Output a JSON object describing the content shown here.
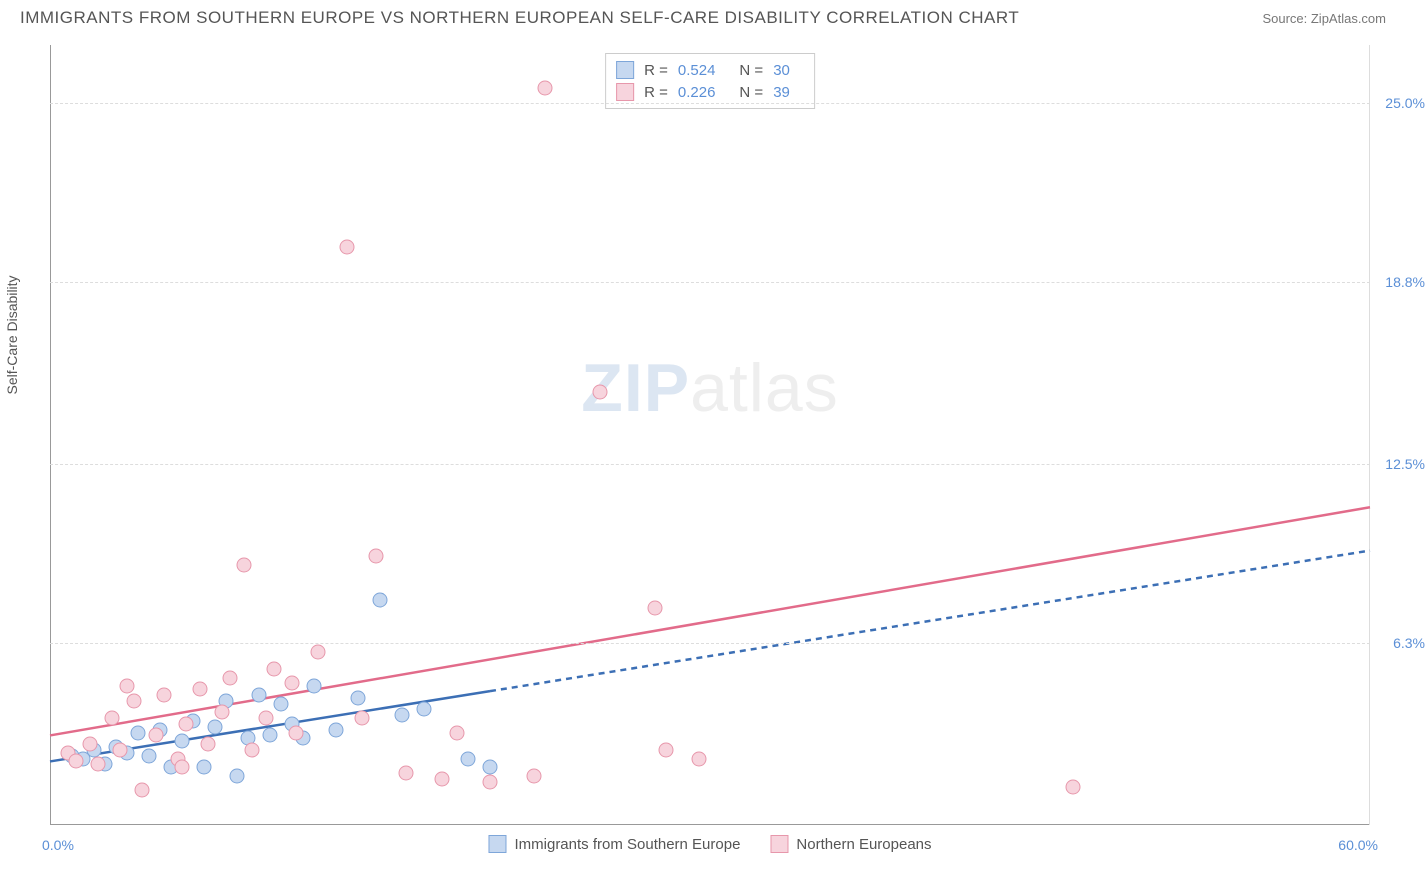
{
  "header": {
    "title": "IMMIGRANTS FROM SOUTHERN EUROPE VS NORTHERN EUROPEAN SELF-CARE DISABILITY CORRELATION CHART",
    "source_label": "Source: ",
    "source_value": "ZipAtlas.com"
  },
  "y_axis_label": "Self-Care Disability",
  "watermark": {
    "zip": "ZIP",
    "atlas": "atlas"
  },
  "chart": {
    "type": "scatter",
    "xlim": [
      0,
      60
    ],
    "ylim": [
      0,
      27
    ],
    "x_ticks": [
      {
        "value": 0,
        "label": "0.0%"
      },
      {
        "value": 60,
        "label": "60.0%"
      }
    ],
    "y_ticks": [
      {
        "value": 6.3,
        "label": "6.3%"
      },
      {
        "value": 12.5,
        "label": "12.5%"
      },
      {
        "value": 18.8,
        "label": "18.8%"
      },
      {
        "value": 25.0,
        "label": "25.0%"
      }
    ],
    "grid_color": "#dddddd",
    "axis_color": "#999999",
    "background_color": "#ffffff",
    "series": [
      {
        "name": "Immigrants from Southern Europe",
        "marker_fill": "#c6d8f0",
        "marker_stroke": "#7ea6d9",
        "marker_size": 15,
        "line_color": "#3c6fb5",
        "line_width": 2.5,
        "line_dash_extend": "6,5",
        "R": "0.524",
        "N": "30",
        "trend": {
          "x1": 0,
          "y1": 2.2,
          "x2": 60,
          "y2": 9.5,
          "solid_until_x": 20
        },
        "points": [
          [
            1.0,
            2.4
          ],
          [
            1.5,
            2.3
          ],
          [
            2.0,
            2.6
          ],
          [
            2.5,
            2.1
          ],
          [
            3.0,
            2.7
          ],
          [
            3.5,
            2.5
          ],
          [
            4.0,
            3.2
          ],
          [
            4.5,
            2.4
          ],
          [
            5.0,
            3.3
          ],
          [
            5.5,
            2.0
          ],
          [
            6.0,
            2.9
          ],
          [
            6.5,
            3.6
          ],
          [
            7.0,
            2.0
          ],
          [
            7.5,
            3.4
          ],
          [
            8.0,
            4.3
          ],
          [
            8.5,
            1.7
          ],
          [
            9.0,
            3.0
          ],
          [
            9.5,
            4.5
          ],
          [
            10.0,
            3.1
          ],
          [
            10.5,
            4.2
          ],
          [
            11.0,
            3.5
          ],
          [
            12.0,
            4.8
          ],
          [
            13.0,
            3.3
          ],
          [
            14.0,
            4.4
          ],
          [
            15.0,
            7.8
          ],
          [
            16.0,
            3.8
          ],
          [
            17.0,
            4.0
          ],
          [
            19.0,
            2.3
          ],
          [
            20.0,
            2.0
          ],
          [
            11.5,
            3.0
          ]
        ]
      },
      {
        "name": "Northern Europeans",
        "marker_fill": "#f7d4dd",
        "marker_stroke": "#e797ab",
        "marker_size": 15,
        "line_color": "#e26b8a",
        "line_width": 2.5,
        "R": "0.226",
        "N": "39",
        "trend": {
          "x1": 0,
          "y1": 3.1,
          "x2": 60,
          "y2": 11.0
        },
        "points": [
          [
            0.8,
            2.5
          ],
          [
            1.2,
            2.2
          ],
          [
            1.8,
            2.8
          ],
          [
            2.2,
            2.1
          ],
          [
            2.8,
            3.7
          ],
          [
            3.2,
            2.6
          ],
          [
            3.8,
            4.3
          ],
          [
            4.2,
            1.2
          ],
          [
            4.8,
            3.1
          ],
          [
            5.2,
            4.5
          ],
          [
            5.8,
            2.3
          ],
          [
            6.2,
            3.5
          ],
          [
            6.8,
            4.7
          ],
          [
            7.2,
            2.8
          ],
          [
            7.8,
            3.9
          ],
          [
            8.2,
            5.1
          ],
          [
            8.8,
            9.0
          ],
          [
            9.2,
            2.6
          ],
          [
            9.8,
            3.7
          ],
          [
            10.2,
            5.4
          ],
          [
            11.2,
            3.2
          ],
          [
            12.2,
            6.0
          ],
          [
            13.5,
            20.0
          ],
          [
            14.2,
            3.7
          ],
          [
            14.8,
            9.3
          ],
          [
            16.2,
            1.8
          ],
          [
            17.8,
            1.6
          ],
          [
            18.5,
            3.2
          ],
          [
            20.0,
            1.5
          ],
          [
            22.0,
            1.7
          ],
          [
            22.5,
            25.5
          ],
          [
            25.0,
            15.0
          ],
          [
            27.5,
            7.5
          ],
          [
            28.0,
            2.6
          ],
          [
            29.5,
            2.3
          ],
          [
            46.5,
            1.3
          ],
          [
            3.5,
            4.8
          ],
          [
            6.0,
            2.0
          ],
          [
            11.0,
            4.9
          ]
        ]
      }
    ]
  },
  "legend_top": {
    "rows": [
      {
        "swatch_fill": "#c6d8f0",
        "swatch_stroke": "#7ea6d9",
        "r_label": "R =",
        "r_value": "0.524",
        "n_label": "N =",
        "n_value": "30"
      },
      {
        "swatch_fill": "#f7d4dd",
        "swatch_stroke": "#e797ab",
        "r_label": "R =",
        "r_value": "0.226",
        "n_label": "N =",
        "n_value": "39"
      }
    ]
  },
  "legend_bottom": {
    "items": [
      {
        "swatch_fill": "#c6d8f0",
        "swatch_stroke": "#7ea6d9",
        "label": "Immigrants from Southern Europe"
      },
      {
        "swatch_fill": "#f7d4dd",
        "swatch_stroke": "#e797ab",
        "label": "Northern Europeans"
      }
    ]
  }
}
